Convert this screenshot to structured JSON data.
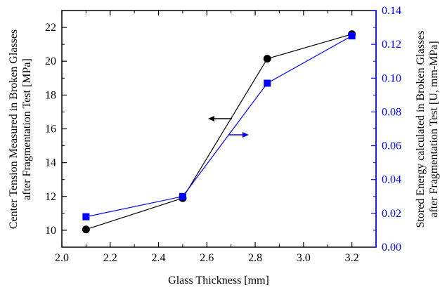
{
  "chart_data": {
    "type": "line",
    "title": "",
    "xlabel": "Glass Thickness [mm]",
    "ylabel_left_line1": "Center Tension Measured in Broken Glasses",
    "ylabel_left_line2": "after Fragmentation Test [MPa]",
    "ylabel_right_line1": "Stored Energy calculated in Broken Glasses",
    "ylabel_right_line2": "after Fragmentation Test [U, mm-MPa]",
    "xlim": [
      2.0,
      3.3
    ],
    "ylim_left": [
      9.0,
      23.0
    ],
    "ylim_right": [
      0.0,
      0.14
    ],
    "x_ticks": [
      "2.0",
      "2.2",
      "2.4",
      "2.6",
      "2.8",
      "3.0",
      "3.2"
    ],
    "y_left_ticks": [
      "10",
      "12",
      "14",
      "16",
      "18",
      "20",
      "22"
    ],
    "y_right_ticks": [
      "0.00",
      "0.02",
      "0.04",
      "0.06",
      "0.08",
      "0.10",
      "0.12",
      "0.14"
    ],
    "legend": "",
    "grid": false,
    "series": [
      {
        "axis": "left",
        "color": "#000000",
        "marker": "circle",
        "x": [
          2.1,
          2.5,
          2.85,
          3.2
        ],
        "values": [
          10.05,
          11.9,
          20.15,
          21.6
        ]
      },
      {
        "axis": "right",
        "color": "#0000ff",
        "marker": "square",
        "x": [
          2.1,
          2.5,
          2.85,
          3.2
        ],
        "values": [
          0.018,
          0.03,
          0.097,
          0.125
        ]
      }
    ],
    "annotations": [
      {
        "kind": "arrow",
        "direction": "left",
        "color": "#000000",
        "points_to": "left axis"
      },
      {
        "kind": "arrow",
        "direction": "right",
        "color": "#0000ff",
        "points_to": "right axis"
      }
    ]
  },
  "colors": {
    "left_axis": "#000000",
    "right_axis": "#0000ff"
  }
}
